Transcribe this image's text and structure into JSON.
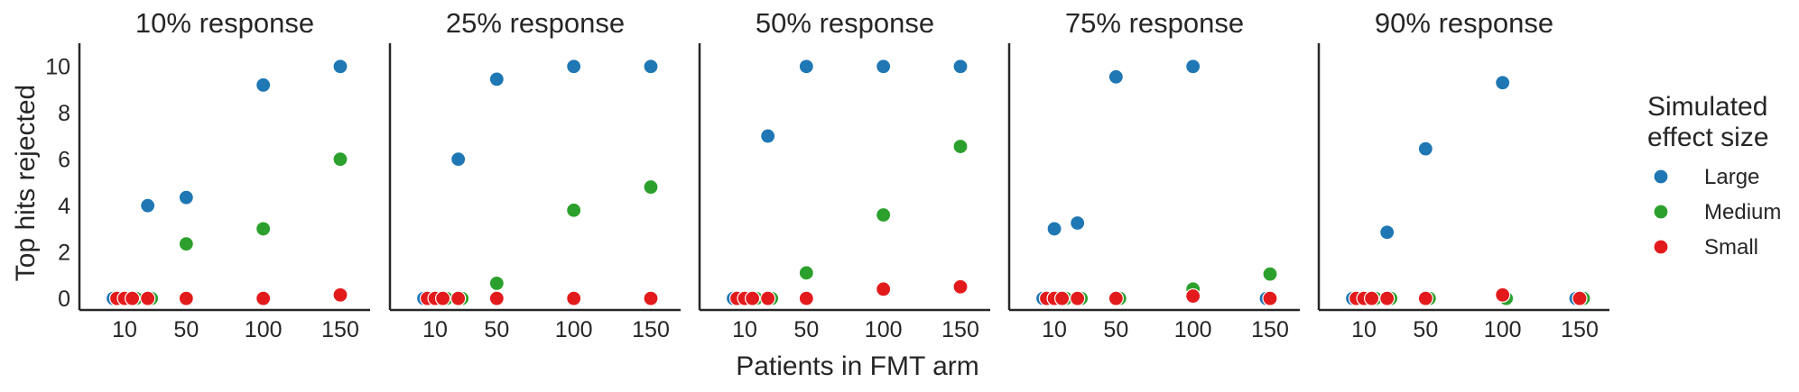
{
  "chart_data": {
    "type": "scatter",
    "xlabel": "Patients in FMT arm",
    "ylabel": "Top hits rejected",
    "xticks": [
      10,
      50,
      100,
      150
    ],
    "yticks": [
      0,
      2,
      4,
      6,
      8,
      10
    ],
    "xlim": [
      -2,
      162
    ],
    "ylim": [
      -0.5,
      11
    ],
    "grid": false,
    "legend": {
      "title": "Simulated\neffect size",
      "placement": "right",
      "entries": [
        {
          "name": "Large",
          "color": "#1f77b4"
        },
        {
          "name": "Medium",
          "color": "#2ca02c"
        },
        {
          "name": "Small",
          "color": "#e31a1c"
        }
      ]
    },
    "panels": [
      {
        "title": "10% response",
        "series": [
          {
            "name": "Large",
            "x": [
              5,
              10,
              15,
              25,
              50,
              100,
              150
            ],
            "y": [
              0,
              0,
              0,
              4.0,
              4.35,
              9.2,
              10.0
            ]
          },
          {
            "name": "Medium",
            "x": [
              5,
              10,
              15,
              25,
              50,
              100,
              150
            ],
            "y": [
              0,
              0,
              0,
              0,
              2.35,
              3.0,
              6.0
            ]
          },
          {
            "name": "Small",
            "x": [
              5,
              10,
              15,
              25,
              50,
              100,
              150
            ],
            "y": [
              0,
              0,
              0,
              0,
              0,
              0,
              0.15
            ]
          }
        ]
      },
      {
        "title": "25% response",
        "series": [
          {
            "name": "Large",
            "x": [
              5,
              10,
              15,
              25,
              50,
              100,
              150
            ],
            "y": [
              0,
              0,
              0,
              6.0,
              9.45,
              10.0,
              10.0
            ]
          },
          {
            "name": "Medium",
            "x": [
              5,
              10,
              15,
              25,
              50,
              100,
              150
            ],
            "y": [
              0,
              0,
              0,
              0,
              0.65,
              3.8,
              4.8
            ]
          },
          {
            "name": "Small",
            "x": [
              5,
              10,
              15,
              25,
              50,
              100,
              150
            ],
            "y": [
              0,
              0,
              0,
              0,
              0,
              0,
              0
            ]
          }
        ]
      },
      {
        "title": "50% response",
        "series": [
          {
            "name": "Large",
            "x": [
              5,
              10,
              15,
              25,
              50,
              100,
              150
            ],
            "y": [
              0,
              0,
              0,
              7.0,
              10.0,
              10.0,
              10.0
            ]
          },
          {
            "name": "Medium",
            "x": [
              5,
              10,
              15,
              25,
              50,
              100,
              150
            ],
            "y": [
              0,
              0,
              0,
              0,
              1.1,
              3.6,
              6.55
            ]
          },
          {
            "name": "Small",
            "x": [
              5,
              10,
              15,
              25,
              50,
              100,
              150
            ],
            "y": [
              0,
              0,
              0,
              0,
              0,
              0.4,
              0.5
            ]
          }
        ]
      },
      {
        "title": "75% response",
        "series": [
          {
            "name": "Large",
            "x": [
              5,
              10,
              15,
              25,
              50,
              100,
              150
            ],
            "y": [
              0,
              3.0,
              0,
              3.25,
              9.55,
              10.0,
              0
            ]
          },
          {
            "name": "Medium",
            "x": [
              5,
              10,
              15,
              25,
              50,
              100,
              150
            ],
            "y": [
              0,
              0,
              0,
              0,
              0,
              0.4,
              1.05
            ]
          },
          {
            "name": "Small",
            "x": [
              5,
              10,
              15,
              25,
              50,
              100,
              150
            ],
            "y": [
              0,
              0,
              0,
              0,
              0,
              0.1,
              0
            ]
          }
        ]
      },
      {
        "title": "90% response",
        "series": [
          {
            "name": "Large",
            "x": [
              5,
              10,
              15,
              25,
              50,
              100,
              150
            ],
            "y": [
              0,
              0,
              0,
              2.85,
              6.45,
              9.3,
              0
            ]
          },
          {
            "name": "Medium",
            "x": [
              5,
              10,
              15,
              25,
              50,
              100,
              150
            ],
            "y": [
              0,
              0,
              0,
              0,
              0,
              0,
              0
            ]
          },
          {
            "name": "Small",
            "x": [
              5,
              10,
              15,
              25,
              50,
              100,
              150
            ],
            "y": [
              0,
              0,
              0,
              0,
              0,
              0.15,
              0
            ]
          }
        ]
      }
    ]
  }
}
